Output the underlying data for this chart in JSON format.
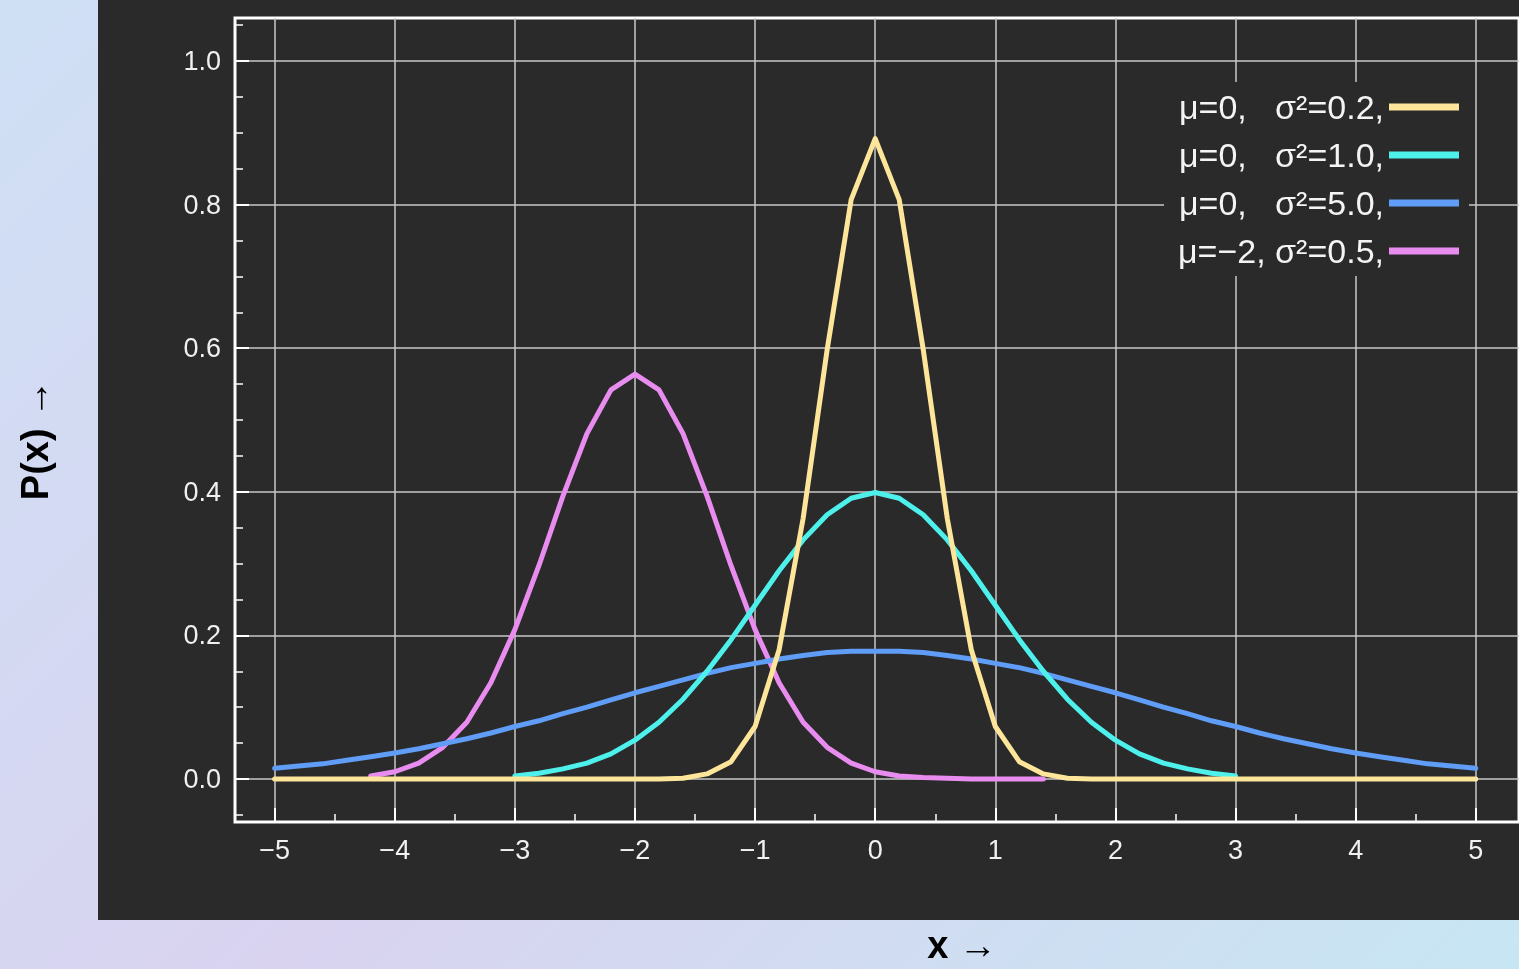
{
  "chart_data": {
    "type": "line",
    "xlabel": "x →",
    "ylabel": "P(x) →",
    "x": [
      -5,
      -4.8,
      -4.6,
      -4.4,
      -4.2,
      -4,
      -3.8,
      -3.6,
      -3.4,
      -3.2,
      -3,
      -2.8,
      -2.6,
      -2.4,
      -2.2,
      -2,
      -1.8,
      -1.6,
      -1.4,
      -1.2,
      -1,
      -0.8,
      -0.6,
      -0.4,
      -0.2,
      0,
      0.2,
      0.4,
      0.6,
      0.8,
      1,
      1.2,
      1.4,
      1.6,
      1.8,
      2,
      2.2,
      2.4,
      2.6,
      2.8,
      3,
      3.2,
      3.4,
      3.6,
      3.8,
      4,
      4.2,
      4.4,
      4.6,
      4.8,
      5
    ],
    "series": [
      {
        "name": "μ=0,   σ²=0.2,",
        "color": "#fde69a",
        "values": [
          0,
          0,
          0,
          0,
          0,
          0,
          0,
          0,
          0,
          0,
          0,
          0,
          0,
          0,
          0,
          0,
          0,
          0.001,
          0.007,
          0.024,
          0.073,
          0.18,
          0.363,
          0.598,
          0.807,
          0.892,
          0.807,
          0.598,
          0.363,
          0.18,
          0.073,
          0.024,
          0.007,
          0.001,
          0,
          0,
          0,
          0,
          0,
          0,
          0,
          0,
          0,
          0,
          0,
          0,
          0,
          0,
          0,
          0,
          0
        ]
      },
      {
        "name": "μ=0,   σ²=1.0,",
        "color": "#4ef0ec",
        "values": [
          null,
          null,
          null,
          null,
          null,
          null,
          null,
          null,
          null,
          null,
          0.004,
          0.008,
          0.014,
          0.022,
          0.035,
          0.054,
          0.079,
          0.111,
          0.15,
          0.194,
          0.242,
          0.29,
          0.333,
          0.368,
          0.391,
          0.399,
          0.391,
          0.368,
          0.333,
          0.29,
          0.242,
          0.194,
          0.15,
          0.111,
          0.079,
          0.054,
          0.035,
          0.022,
          0.014,
          0.008,
          0.004,
          null,
          null,
          null,
          null,
          null,
          null,
          null,
          null,
          null,
          null
        ]
      },
      {
        "name": "μ=0,   σ²=5.0,",
        "color": "#5f9df7",
        "values": [
          0.015,
          0.018,
          0.021,
          0.026,
          0.031,
          0.036,
          0.042,
          0.049,
          0.056,
          0.064,
          0.073,
          0.081,
          0.091,
          0.1,
          0.11,
          0.12,
          0.129,
          0.138,
          0.147,
          0.155,
          0.161,
          0.167,
          0.172,
          0.176,
          0.178,
          0.178,
          0.178,
          0.176,
          0.172,
          0.167,
          0.161,
          0.155,
          0.147,
          0.138,
          0.129,
          0.12,
          0.11,
          0.1,
          0.091,
          0.081,
          0.073,
          0.064,
          0.056,
          0.049,
          0.042,
          0.036,
          0.031,
          0.026,
          0.021,
          0.018,
          0.015
        ]
      },
      {
        "name": "μ=−2, σ²=0.5,",
        "color": "#e98cf0",
        "values": [
          null,
          null,
          null,
          null,
          0.004,
          0.01,
          0.022,
          0.044,
          0.079,
          0.134,
          0.208,
          0.297,
          0.394,
          0.481,
          0.542,
          0.564,
          0.542,
          0.481,
          0.394,
          0.297,
          0.208,
          0.134,
          0.079,
          0.044,
          0.022,
          0.01,
          0.004,
          0.002,
          0.001,
          0,
          0,
          0,
          0,
          null,
          null,
          null,
          null,
          null,
          null,
          null,
          null,
          null,
          null,
          null,
          null,
          null,
          null,
          null,
          null,
          null,
          null
        ]
      }
    ],
    "xlim": [
      -5.33,
      5.36
    ],
    "xticks": [
      {
        "value": -5,
        "label": "−5"
      },
      {
        "value": -4,
        "label": "−4"
      },
      {
        "value": -3,
        "label": "−3"
      },
      {
        "value": -2,
        "label": "−2"
      },
      {
        "value": -1,
        "label": "−1"
      },
      0,
      1,
      2,
      3,
      4,
      5
    ],
    "ylim": [
      -0.06,
      1.06
    ],
    "yticks": [
      {
        "value": 0,
        "label": "0.0"
      },
      0.2,
      0.4,
      0.6,
      0.8,
      {
        "value": 1,
        "label": "1.0"
      }
    ],
    "grid": true,
    "legend": "top right",
    "marker": "none",
    "line_style": "solid"
  }
}
